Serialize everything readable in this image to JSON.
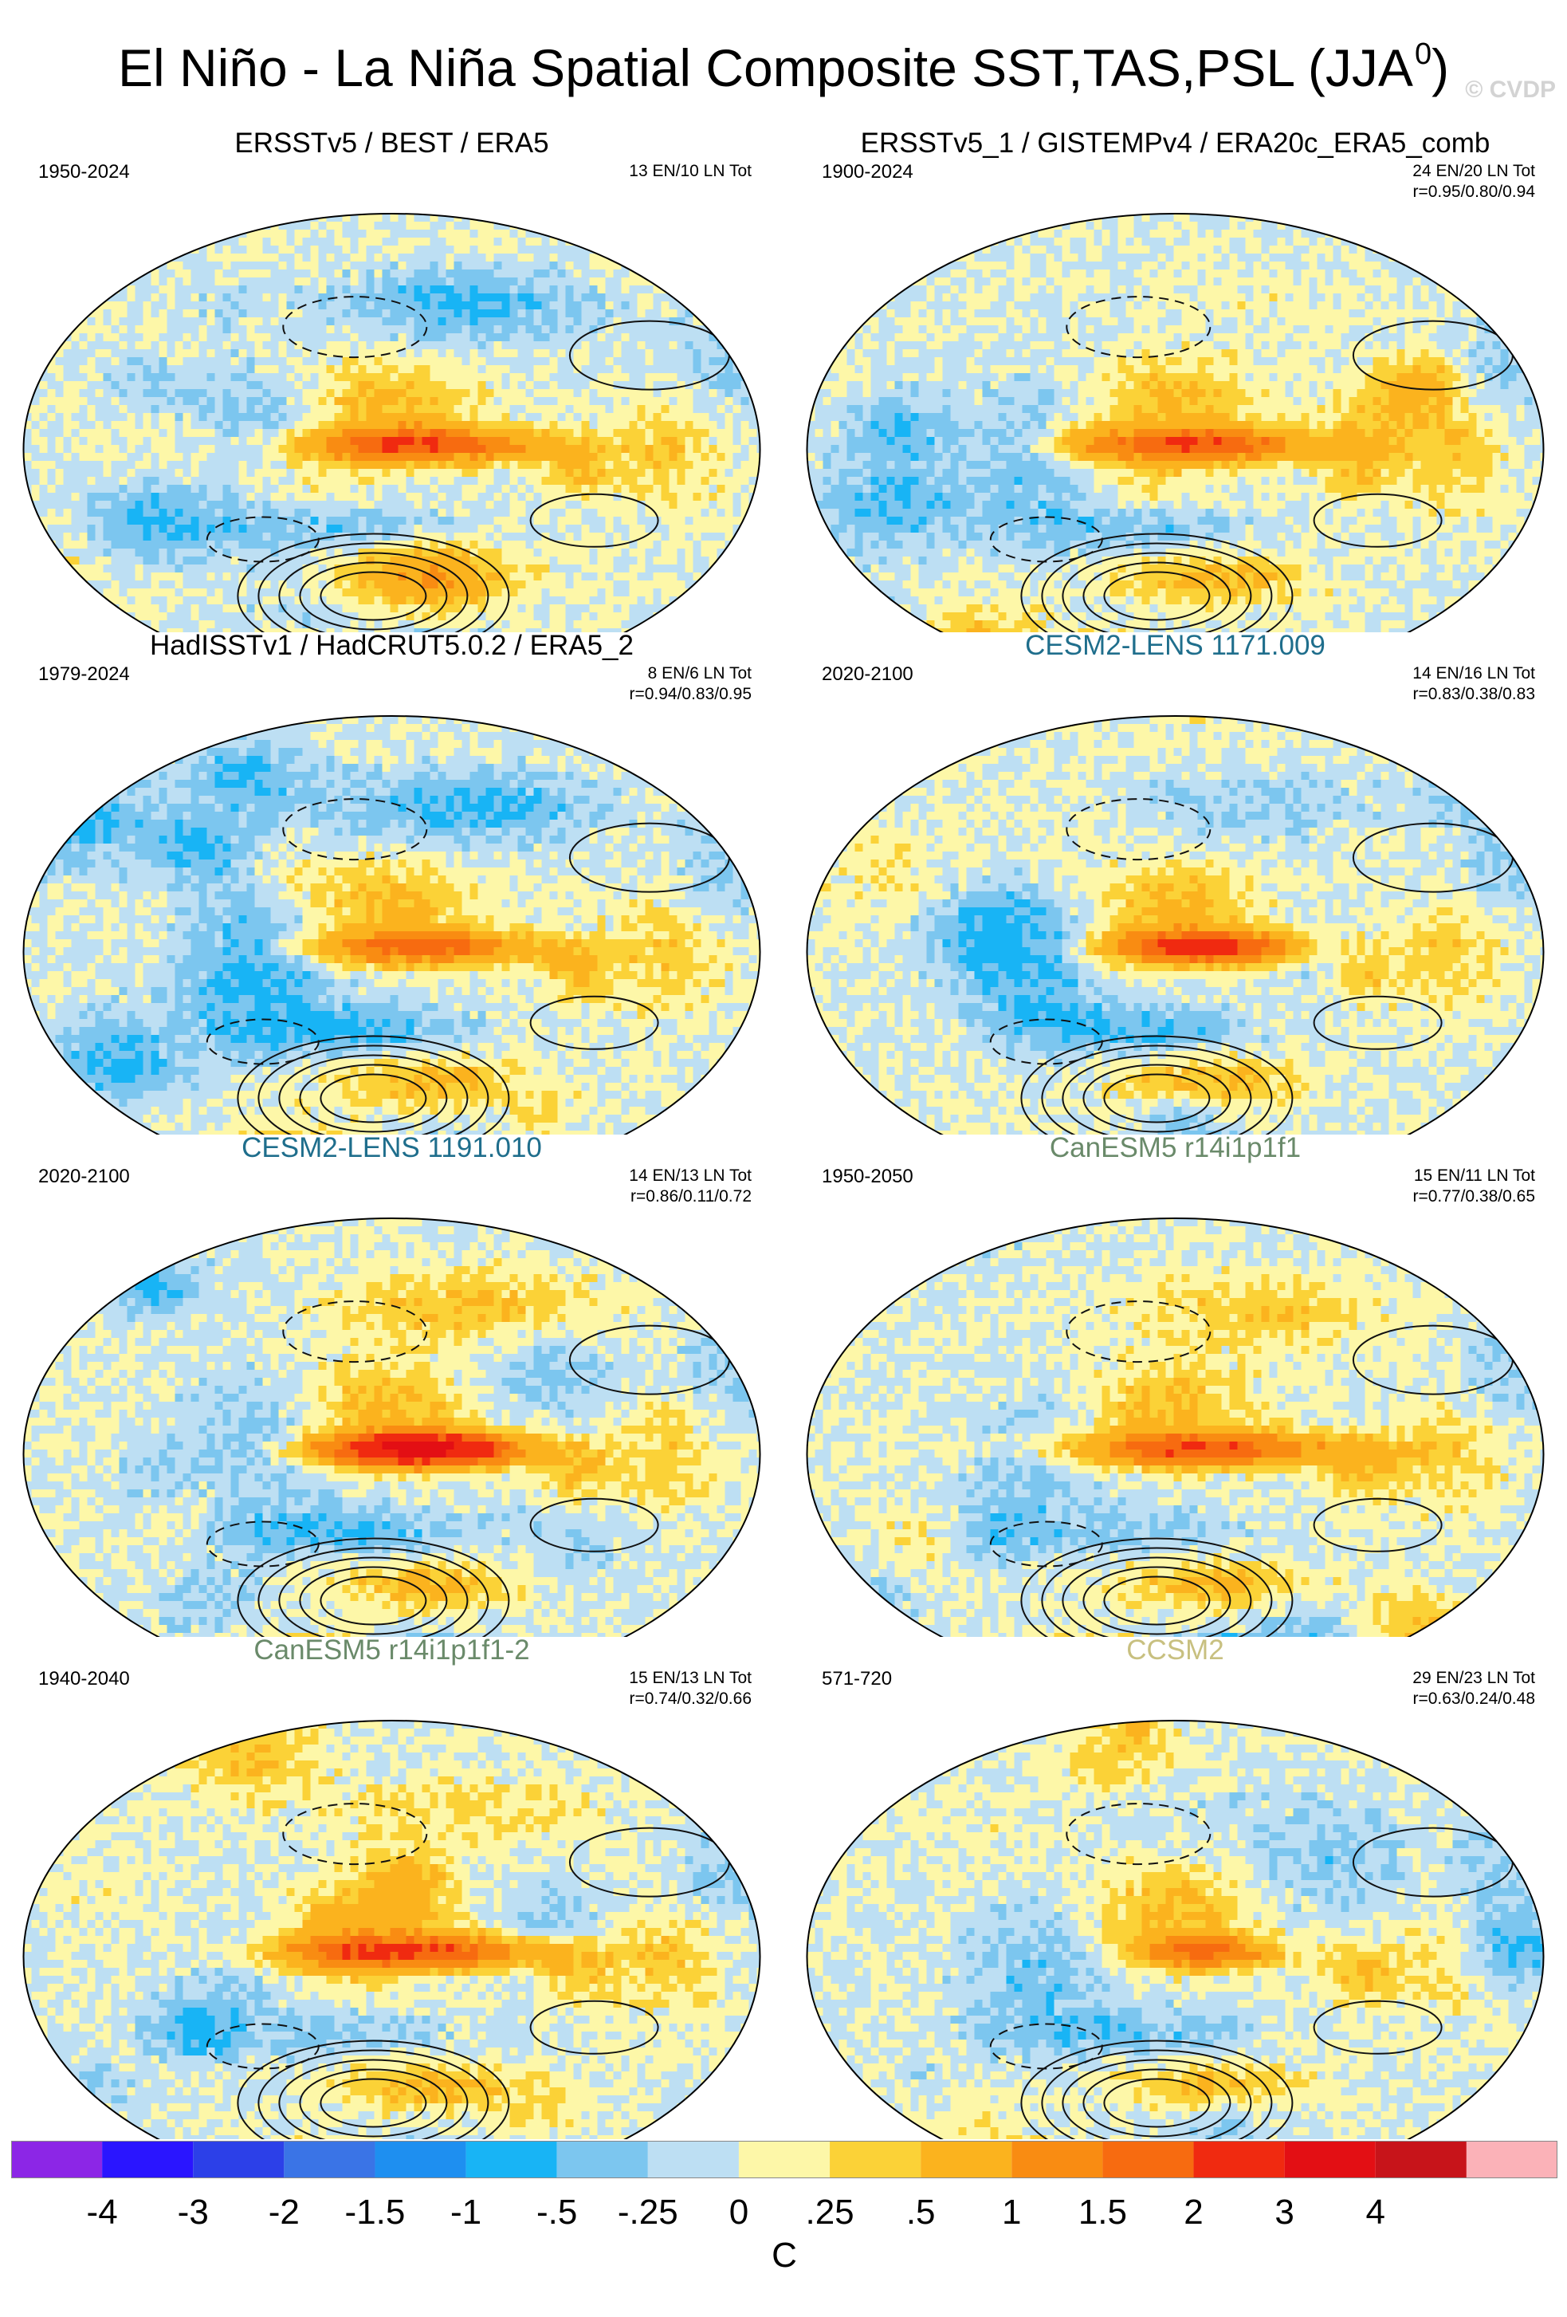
{
  "figure": {
    "title_main": "El Niño - La Niña Spatial Composite SST,TAS,PSL (JJA",
    "title_sup": "0",
    "title_close": ")",
    "watermark": "© CVDP"
  },
  "chart_data": [
    {
      "type": "heatmap",
      "title": "ERSSTv5 / BEST / ERA5",
      "title_color": "#000000",
      "years": "1950-2024",
      "counts": "13 EN/10 LN Tot",
      "correlation": "",
      "variables": [
        "SST",
        "TAS",
        "PSL"
      ],
      "season": "JJA0",
      "units": "C",
      "features": {
        "nino": 2.0,
        "nino_scale": 1.0,
        "west_cool": -0.6,
        "high_lat": -0.5,
        "sh_contrast": 1.5,
        "seed": 3
      }
    },
    {
      "type": "heatmap",
      "title": "ERSSTv5_1 / GISTEMPv4 / ERA20c_ERA5_comb",
      "title_color": "#000000",
      "years": "1900-2024",
      "counts": "24 EN/20 LN Tot",
      "correlation": "r=0.95/0.80/0.94",
      "variables": [
        "SST",
        "TAS",
        "PSL"
      ],
      "season": "JJA0",
      "units": "C",
      "features": {
        "nino": 1.8,
        "nino_scale": 1.0,
        "west_cool": -0.4,
        "high_lat": 0.1,
        "sh_contrast": 1.0,
        "seed": 7
      }
    },
    {
      "type": "heatmap",
      "title": "HadISSTv1 / HadCRUT5.0.2 / ERA5_2",
      "title_color": "#000000",
      "years": "1979-2024",
      "counts": "8 EN/6 LN Tot",
      "correlation": "r=0.94/0.83/0.95",
      "variables": [
        "SST",
        "TAS",
        "PSL"
      ],
      "season": "JJA0",
      "units": "C",
      "features": {
        "nino": 1.7,
        "nino_scale": 0.95,
        "west_cool": -0.6,
        "high_lat": -0.6,
        "sh_contrast": 0.8,
        "seed": 11
      }
    },
    {
      "type": "heatmap",
      "title": "CESM2-LENS 1171.009",
      "title_color": "#1f6e8c",
      "years": "2020-2100",
      "counts": "14 EN/16 LN Tot",
      "correlation": "r=0.83/0.38/0.83",
      "variables": [
        "SST",
        "TAS",
        "PSL"
      ],
      "season": "JJA0",
      "units": "C",
      "features": {
        "nino": 2.3,
        "nino_scale": 0.8,
        "west_cool": -0.5,
        "high_lat": -0.3,
        "sh_contrast": 0.4,
        "seed": 13
      }
    },
    {
      "type": "heatmap",
      "title": "CESM2-LENS 1191.010",
      "title_color": "#1f6e8c",
      "years": "2020-2100",
      "counts": "14 EN/13 LN Tot",
      "correlation": "r=0.86/0.11/0.72",
      "variables": [
        "SST",
        "TAS",
        "PSL"
      ],
      "season": "JJA0",
      "units": "C",
      "features": {
        "nino": 3.4,
        "nino_scale": 0.8,
        "west_cool": -0.5,
        "high_lat": 0.5,
        "sh_contrast": 2.5,
        "seed": 17
      }
    },
    {
      "type": "heatmap",
      "title": "CanESM5 r14i1p1f1",
      "title_color": "#6a8a6a",
      "years": "1950-2050",
      "counts": "15 EN/11 LN Tot",
      "correlation": "r=0.77/0.38/0.65",
      "variables": [
        "SST",
        "TAS",
        "PSL"
      ],
      "season": "JJA0",
      "units": "C",
      "features": {
        "nino": 1.9,
        "nino_scale": 1.1,
        "west_cool": -0.3,
        "high_lat": 0.4,
        "sh_contrast": 2.2,
        "seed": 19
      }
    },
    {
      "type": "heatmap",
      "title": "CanESM5 r14i1p1f1-2",
      "title_color": "#6a8a6a",
      "years": "1940-2040",
      "counts": "15 EN/13 LN Tot",
      "correlation": "r=0.74/0.32/0.66",
      "variables": [
        "SST",
        "TAS",
        "PSL"
      ],
      "season": "JJA0",
      "units": "C",
      "features": {
        "nino": 1.9,
        "nino_scale": 1.1,
        "west_cool": -0.3,
        "high_lat": 0.3,
        "sh_contrast": 1.4,
        "seed": 23
      }
    },
    {
      "type": "heatmap",
      "title": "CCSM2",
      "title_color": "#c8c080",
      "years": "571-720",
      "counts": "29 EN/23 LN Tot",
      "correlation": "r=0.63/0.24/0.48",
      "variables": [
        "SST",
        "TAS",
        "PSL"
      ],
      "season": "JJA0",
      "units": "C",
      "features": {
        "nino": 1.6,
        "nino_scale": 0.55,
        "west_cool": -0.4,
        "high_lat": -0.1,
        "sh_contrast": 0.3,
        "seed": 29
      }
    }
  ],
  "colorbar": {
    "units": "C",
    "colors": [
      "#8c26e6",
      "#2a15ff",
      "#2c40e8",
      "#3a74e6",
      "#1e8ff0",
      "#18b4f5",
      "#7cc6ef",
      "#bddff3",
      "#fdf7a8",
      "#fbd237",
      "#fbb31e",
      "#f98c12",
      "#f76b10",
      "#f02a10",
      "#e30f14",
      "#c7141a",
      "#fbb2b8"
    ],
    "labels": [
      "-4",
      "-3",
      "-2",
      "-1.5",
      "-1",
      "-.5",
      "-.25",
      "0",
      ".25",
      ".5",
      "1",
      "1.5",
      "2",
      "3",
      "4"
    ],
    "levels": [
      -4,
      -3,
      -2,
      -1.5,
      -1,
      -0.5,
      -0.25,
      0,
      0.25,
      0.5,
      1,
      1.5,
      2,
      3,
      4
    ]
  }
}
